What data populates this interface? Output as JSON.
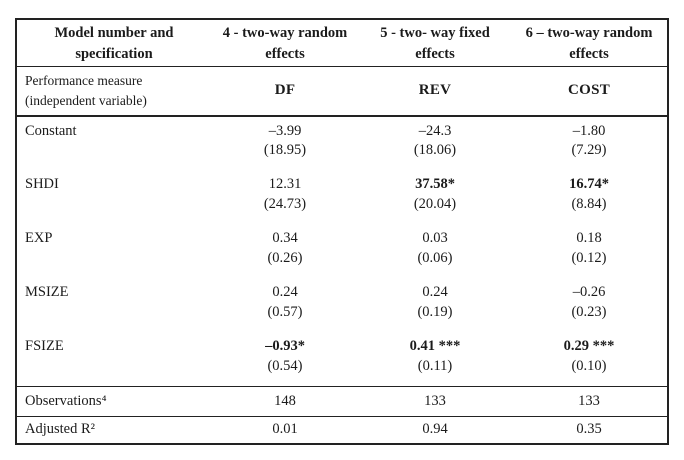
{
  "colors": {
    "background": "#ffffff",
    "text": "#1b1b1b",
    "border": "#222222"
  },
  "table": {
    "header": {
      "model_col": "Model number and\nspecification",
      "models": [
        "4 - two-way random\neffects",
        "5 - two- way fixed\neffects",
        "6 – two-way random\neffects"
      ]
    },
    "measure_row": {
      "label": "Performance measure\n(independent variable)",
      "measures": [
        "DF",
        "REV",
        "COST"
      ]
    },
    "variables": [
      {
        "label": "Constant",
        "cells": [
          {
            "coef": "–3.99",
            "se": "(18.95)"
          },
          {
            "coef": "–24.3",
            "se": "(18.06)"
          },
          {
            "coef": "–1.80",
            "se": "(7.29)"
          }
        ]
      },
      {
        "label": "SHDI",
        "cells": [
          {
            "coef": "12.31",
            "se": "(24.73)"
          },
          {
            "coef": "37.58*",
            "se": "(20.04)",
            "bold": true
          },
          {
            "coef": "16.74*",
            "se": "(8.84)",
            "bold": true
          }
        ]
      },
      {
        "label": "EXP",
        "cells": [
          {
            "coef": "0.34",
            "se": "(0.26)"
          },
          {
            "coef": "0.03",
            "se": "(0.06)"
          },
          {
            "coef": "0.18",
            "se": "(0.12)"
          }
        ]
      },
      {
        "label": "MSIZE",
        "cells": [
          {
            "coef": "0.24",
            "se": "(0.57)"
          },
          {
            "coef": "0.24",
            "se": "(0.19)"
          },
          {
            "coef": "–0.26",
            "se": "(0.23)"
          }
        ]
      },
      {
        "label": "FSIZE",
        "cells": [
          {
            "coef": "–0.93*",
            "se": "(0.54)",
            "bold": true
          },
          {
            "coef": "0.41 ***",
            "se": "(0.11)",
            "bold": true
          },
          {
            "coef": "0.29 ***",
            "se": "(0.10)",
            "bold": true
          }
        ]
      }
    ],
    "summary": [
      {
        "label": "Observations⁴",
        "values": [
          "148",
          "133",
          "133"
        ]
      },
      {
        "label": "Adjusted R²",
        "values": [
          "0.01",
          "0.94",
          "0.35"
        ]
      }
    ]
  }
}
